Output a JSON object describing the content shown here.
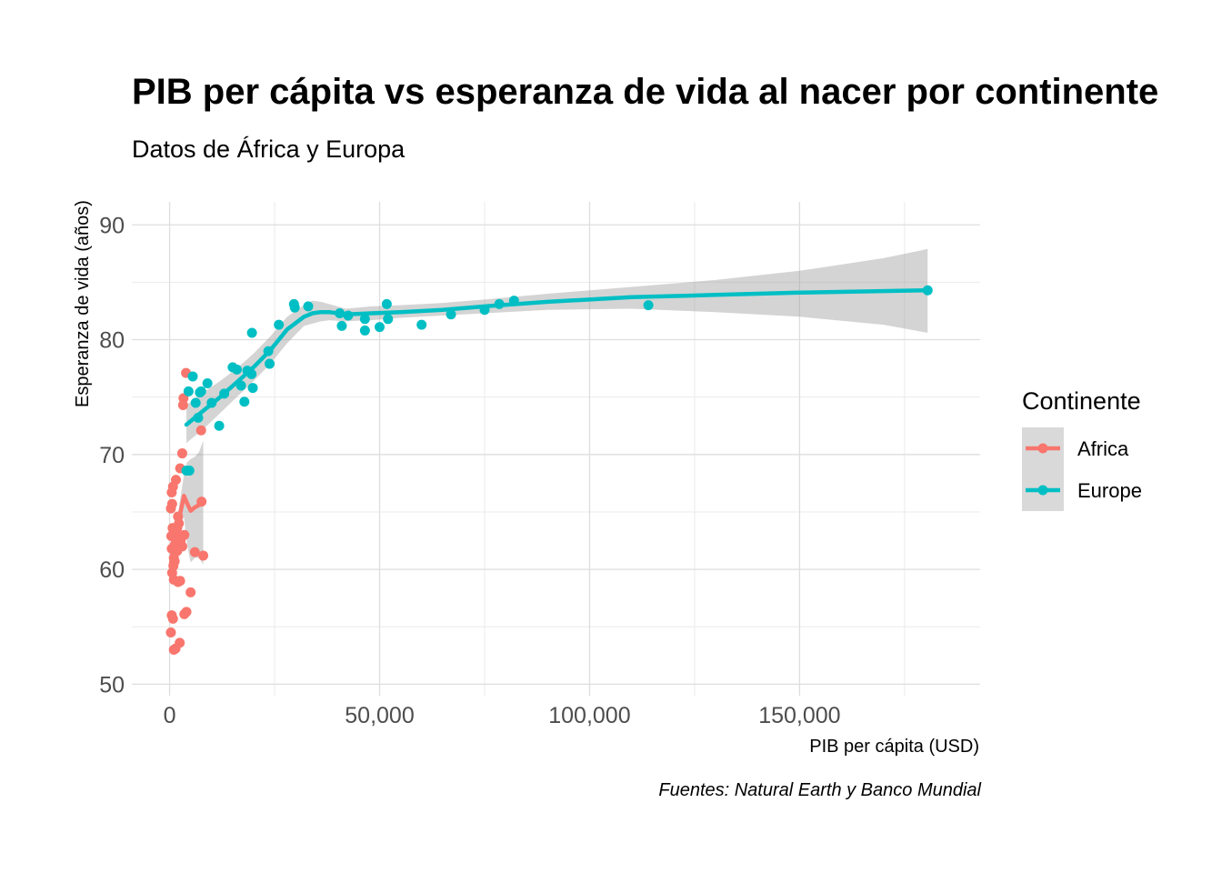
{
  "chart_data": {
    "type": "scatter",
    "title": "PIB per cápita vs esperanza de vida al nacer por continente",
    "subtitle": "Datos de África y Europa",
    "xlabel": "PIB per cápita  (USD)",
    "ylabel": "Esperanza de vida (años)",
    "caption": "Fuentes: Natural Earth y Banco Mundial",
    "xlim": [
      -9000,
      193000
    ],
    "ylim": [
      49,
      92
    ],
    "x_ticks": [
      0,
      50000,
      100000,
      150000
    ],
    "x_tick_labels": [
      "0",
      "50,000",
      "100,000",
      "150,000"
    ],
    "y_ticks": [
      50,
      60,
      70,
      80,
      90
    ],
    "y_tick_labels": [
      "50",
      "60",
      "70",
      "80",
      "90"
    ],
    "grid": true,
    "legend": {
      "title": "Continente",
      "position": "right"
    },
    "series": [
      {
        "name": "Africa",
        "color": "#F8766D",
        "points": [
          [
            300,
            54.5
          ],
          [
            500,
            56
          ],
          [
            600,
            59.7
          ],
          [
            500,
            61.8
          ],
          [
            400,
            62.9
          ],
          [
            700,
            63.6
          ],
          [
            300,
            65.3
          ],
          [
            600,
            65.7
          ],
          [
            500,
            66.7
          ],
          [
            800,
            67.2
          ],
          [
            900,
            60.3
          ],
          [
            1000,
            59.1
          ],
          [
            1200,
            60.7
          ],
          [
            1500,
            62.3
          ],
          [
            1800,
            61.6
          ],
          [
            1000,
            61
          ],
          [
            1200,
            62.1
          ],
          [
            1800,
            63.6
          ],
          [
            2000,
            64.6
          ],
          [
            2200,
            64
          ],
          [
            1500,
            67.8
          ],
          [
            2500,
            68.8
          ],
          [
            2500,
            59
          ],
          [
            2600,
            62.5
          ],
          [
            3000,
            62
          ],
          [
            3500,
            63
          ],
          [
            3000,
            70.1
          ],
          [
            3200,
            74.3
          ],
          [
            3300,
            74.9
          ],
          [
            3900,
            77.1
          ],
          [
            3500,
            56.1
          ],
          [
            4000,
            56.3
          ],
          [
            800,
            55.7
          ],
          [
            1000,
            53
          ],
          [
            1400,
            53.1
          ],
          [
            2400,
            53.6
          ],
          [
            2000,
            58.9
          ],
          [
            5000,
            58
          ],
          [
            6000,
            61.5
          ],
          [
            7500,
            72.1
          ],
          [
            7600,
            65.9
          ],
          [
            8000,
            61.2
          ],
          [
            1500,
            63
          ],
          [
            2800,
            62.8
          ]
        ],
        "smooth": [
          [
            300,
            60.5
          ],
          [
            1000,
            62.2
          ],
          [
            1800,
            63.6
          ],
          [
            2600,
            65
          ],
          [
            3400,
            66.4
          ],
          [
            4100,
            65.8
          ],
          [
            5000,
            65.1
          ],
          [
            6000,
            65.4
          ],
          [
            7000,
            65.6
          ],
          [
            8000,
            65.8
          ]
        ],
        "band_upper": [
          [
            300,
            61.7
          ],
          [
            1000,
            63
          ],
          [
            1800,
            64.5
          ],
          [
            2600,
            66.3
          ],
          [
            3400,
            68.2
          ],
          [
            4100,
            69.3
          ],
          [
            5000,
            69.6
          ],
          [
            6000,
            69.8
          ],
          [
            7000,
            70.2
          ],
          [
            8000,
            71.2
          ]
        ],
        "band_lower": [
          [
            300,
            59.3
          ],
          [
            1000,
            61.4
          ],
          [
            1800,
            62.7
          ],
          [
            2600,
            63.7
          ],
          [
            3400,
            64.6
          ],
          [
            4100,
            62.3
          ],
          [
            5000,
            60.6
          ],
          [
            6000,
            61
          ],
          [
            7000,
            61
          ],
          [
            8000,
            60.4
          ]
        ]
      },
      {
        "name": "Europe",
        "color": "#00BFC4",
        "points": [
          [
            4000,
            68.6
          ],
          [
            4700,
            68.6
          ],
          [
            4500,
            75.5
          ],
          [
            5500,
            76.8
          ],
          [
            6200,
            74.5
          ],
          [
            6800,
            73.2
          ],
          [
            7200,
            75.4
          ],
          [
            7500,
            75.5
          ],
          [
            9000,
            76.2
          ],
          [
            10000,
            74.5
          ],
          [
            11800,
            72.5
          ],
          [
            13000,
            75.3
          ],
          [
            15000,
            77.6
          ],
          [
            16000,
            77.4
          ],
          [
            17000,
            76
          ],
          [
            17800,
            74.6
          ],
          [
            18500,
            77.3
          ],
          [
            19500,
            77
          ],
          [
            19800,
            75.8
          ],
          [
            19600,
            80.6
          ],
          [
            23500,
            79
          ],
          [
            23800,
            77.9
          ],
          [
            26000,
            81.3
          ],
          [
            29800,
            82.8
          ],
          [
            29600,
            83.1
          ],
          [
            33000,
            82.9
          ],
          [
            40500,
            82.3
          ],
          [
            41000,
            81.2
          ],
          [
            42500,
            82.1
          ],
          [
            46500,
            81.8
          ],
          [
            46500,
            80.8
          ],
          [
            50000,
            81.1
          ],
          [
            51700,
            83.1
          ],
          [
            52000,
            81.8
          ],
          [
            60000,
            81.3
          ],
          [
            67000,
            82.2
          ],
          [
            75000,
            82.6
          ],
          [
            78500,
            83.1
          ],
          [
            82000,
            83.4
          ],
          [
            114000,
            83
          ],
          [
            180500,
            84.3
          ]
        ],
        "smooth": [
          [
            4000,
            72.6
          ],
          [
            8000,
            73.8
          ],
          [
            12000,
            75
          ],
          [
            16000,
            76.3
          ],
          [
            20000,
            77.6
          ],
          [
            24000,
            79.1
          ],
          [
            28000,
            80.9
          ],
          [
            32000,
            82
          ],
          [
            34000,
            82.3
          ],
          [
            36000,
            82.4
          ],
          [
            38000,
            82.4
          ],
          [
            42000,
            82.2
          ],
          [
            48000,
            82.3
          ],
          [
            55000,
            82.4
          ],
          [
            65000,
            82.6
          ],
          [
            75000,
            82.9
          ],
          [
            90000,
            83.3
          ],
          [
            110000,
            83.7
          ],
          [
            130000,
            83.9
          ],
          [
            150000,
            84.1
          ],
          [
            180500,
            84.3
          ]
        ],
        "band_upper": [
          [
            4000,
            74.3
          ],
          [
            8000,
            75.4
          ],
          [
            12000,
            76.4
          ],
          [
            16000,
            77.5
          ],
          [
            20000,
            78.8
          ],
          [
            24000,
            80.3
          ],
          [
            28000,
            82
          ],
          [
            32000,
            83
          ],
          [
            34000,
            83.4
          ],
          [
            36000,
            83.3
          ],
          [
            38000,
            83.1
          ],
          [
            42000,
            82.7
          ],
          [
            48000,
            82.9
          ],
          [
            55000,
            83
          ],
          [
            65000,
            83.2
          ],
          [
            75000,
            83.5
          ],
          [
            90000,
            84
          ],
          [
            110000,
            84.6
          ],
          [
            130000,
            85.2
          ],
          [
            150000,
            86
          ],
          [
            170000,
            87.1
          ],
          [
            180500,
            87.9
          ]
        ],
        "band_lower": [
          [
            4000,
            71
          ],
          [
            8000,
            72.2
          ],
          [
            12000,
            73.6
          ],
          [
            16000,
            75
          ],
          [
            20000,
            76.4
          ],
          [
            24000,
            77.9
          ],
          [
            28000,
            79.7
          ],
          [
            32000,
            81.2
          ],
          [
            34000,
            81.4
          ],
          [
            36000,
            81.6
          ],
          [
            38000,
            81.7
          ],
          [
            42000,
            81.6
          ],
          [
            48000,
            81.7
          ],
          [
            55000,
            81.9
          ],
          [
            65000,
            82.1
          ],
          [
            75000,
            82.3
          ],
          [
            90000,
            82.6
          ],
          [
            110000,
            82.7
          ],
          [
            130000,
            82.4
          ],
          [
            150000,
            82
          ],
          [
            170000,
            81.3
          ],
          [
            180500,
            80.6
          ]
        ]
      }
    ]
  }
}
